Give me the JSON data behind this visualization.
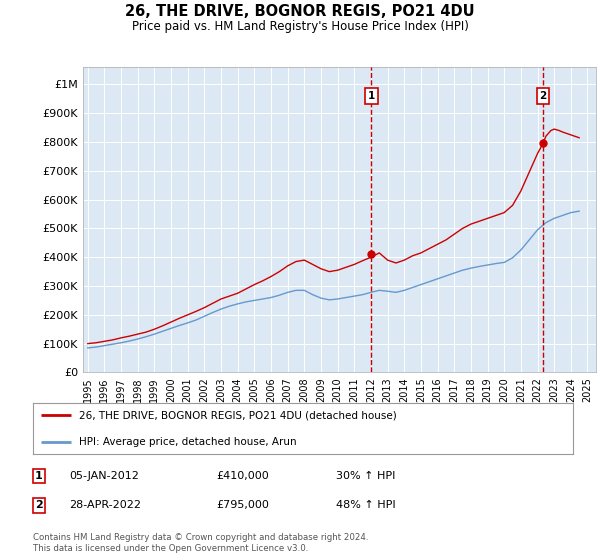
{
  "title": "26, THE DRIVE, BOGNOR REGIS, PO21 4DU",
  "subtitle": "Price paid vs. HM Land Registry's House Price Index (HPI)",
  "background_color": "#ffffff",
  "plot_bg_color": "#dce9f5",
  "ylabel_ticks": [
    "£0",
    "£100K",
    "£200K",
    "£300K",
    "£400K",
    "£500K",
    "£600K",
    "£700K",
    "£800K",
    "£900K",
    "£1M"
  ],
  "ytick_values": [
    0,
    100000,
    200000,
    300000,
    400000,
    500000,
    600000,
    700000,
    800000,
    900000,
    1000000
  ],
  "ylim": [
    0,
    1060000
  ],
  "xlim_start": 1994.7,
  "xlim_end": 2025.5,
  "xtick_years": [
    1995,
    1996,
    1997,
    1998,
    1999,
    2000,
    2001,
    2002,
    2003,
    2004,
    2005,
    2006,
    2007,
    2008,
    2009,
    2010,
    2011,
    2012,
    2013,
    2014,
    2015,
    2016,
    2017,
    2018,
    2019,
    2020,
    2021,
    2022,
    2023,
    2024,
    2025
  ],
  "red_line_color": "#cc0000",
  "blue_line_color": "#6699cc",
  "marker1_date": 2012.03,
  "marker1_value": 410000,
  "marker1_label": "1",
  "marker2_date": 2022.33,
  "marker2_value": 795000,
  "marker2_label": "2",
  "legend_red_label": "26, THE DRIVE, BOGNOR REGIS, PO21 4DU (detached house)",
  "legend_blue_label": "HPI: Average price, detached house, Arun",
  "annotation1_date": "05-JAN-2012",
  "annotation1_price": "£410,000",
  "annotation1_hpi": "30% ↑ HPI",
  "annotation2_date": "28-APR-2022",
  "annotation2_price": "£795,000",
  "annotation2_hpi": "48% ↑ HPI",
  "footer": "Contains HM Land Registry data © Crown copyright and database right 2024.\nThis data is licensed under the Open Government Licence v3.0.",
  "red_x": [
    1995.0,
    1995.5,
    1996.0,
    1996.5,
    1997.0,
    1997.5,
    1998.0,
    1998.5,
    1999.0,
    1999.5,
    2000.0,
    2000.5,
    2001.0,
    2001.5,
    2002.0,
    2002.5,
    2003.0,
    2003.5,
    2004.0,
    2004.5,
    2005.0,
    2005.5,
    2006.0,
    2006.5,
    2007.0,
    2007.5,
    2008.0,
    2008.5,
    2009.0,
    2009.5,
    2010.0,
    2010.5,
    2011.0,
    2011.5,
    2012.0,
    2012.5,
    2013.0,
    2013.5,
    2014.0,
    2014.5,
    2015.0,
    2015.5,
    2016.0,
    2016.5,
    2017.0,
    2017.5,
    2018.0,
    2018.5,
    2019.0,
    2019.5,
    2020.0,
    2020.5,
    2021.0,
    2021.5,
    2022.0,
    2022.33,
    2022.5,
    2022.8,
    2023.0,
    2023.3,
    2023.5,
    2024.0,
    2024.5
  ],
  "red_y": [
    100000,
    103000,
    108000,
    113000,
    120000,
    126000,
    133000,
    140000,
    150000,
    162000,
    175000,
    188000,
    200000,
    212000,
    225000,
    240000,
    255000,
    265000,
    275000,
    290000,
    305000,
    318000,
    333000,
    350000,
    370000,
    385000,
    390000,
    375000,
    360000,
    350000,
    355000,
    365000,
    375000,
    388000,
    400000,
    415000,
    390000,
    380000,
    390000,
    405000,
    415000,
    430000,
    445000,
    460000,
    480000,
    500000,
    515000,
    525000,
    535000,
    545000,
    555000,
    580000,
    630000,
    695000,
    760000,
    795000,
    820000,
    840000,
    845000,
    840000,
    835000,
    825000,
    815000
  ],
  "blue_x": [
    1995.0,
    1995.5,
    1996.0,
    1996.5,
    1997.0,
    1997.5,
    1998.0,
    1998.5,
    1999.0,
    1999.5,
    2000.0,
    2000.5,
    2001.0,
    2001.5,
    2002.0,
    2002.5,
    2003.0,
    2003.5,
    2004.0,
    2004.5,
    2005.0,
    2005.5,
    2006.0,
    2006.5,
    2007.0,
    2007.5,
    2008.0,
    2008.5,
    2009.0,
    2009.5,
    2010.0,
    2010.5,
    2011.0,
    2011.5,
    2012.0,
    2012.5,
    2013.0,
    2013.5,
    2014.0,
    2014.5,
    2015.0,
    2015.5,
    2016.0,
    2016.5,
    2017.0,
    2017.5,
    2018.0,
    2018.5,
    2019.0,
    2019.5,
    2020.0,
    2020.5,
    2021.0,
    2021.5,
    2022.0,
    2022.5,
    2023.0,
    2023.5,
    2024.0,
    2024.5
  ],
  "blue_y": [
    85000,
    88000,
    93000,
    98000,
    103000,
    109000,
    116000,
    124000,
    133000,
    143000,
    153000,
    163000,
    172000,
    182000,
    195000,
    208000,
    220000,
    230000,
    238000,
    245000,
    250000,
    255000,
    260000,
    268000,
    278000,
    285000,
    285000,
    270000,
    258000,
    252000,
    255000,
    260000,
    265000,
    270000,
    278000,
    285000,
    282000,
    278000,
    285000,
    295000,
    305000,
    315000,
    325000,
    335000,
    345000,
    355000,
    362000,
    368000,
    373000,
    378000,
    382000,
    398000,
    425000,
    460000,
    495000,
    520000,
    535000,
    545000,
    555000,
    560000
  ]
}
